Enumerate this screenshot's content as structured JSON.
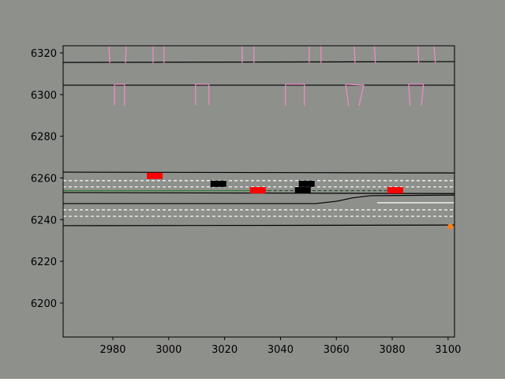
{
  "chart_data": {
    "type": "scene",
    "xlim": [
      2962.2,
      3102.3
    ],
    "ylim": [
      6183.7,
      6323.4
    ],
    "xticks": [
      2980,
      3000,
      3020,
      3040,
      3060,
      3080,
      3100
    ],
    "yticks": [
      6200,
      6220,
      6240,
      6260,
      6280,
      6300,
      6320
    ],
    "background": "#8e908c",
    "lines": [
      {
        "color": "#000000",
        "dash": false,
        "x": [
          2962.2,
          3102.3
        ],
        "y": [
          6315.4,
          6315.8
        ]
      },
      {
        "color": "#000000",
        "dash": false,
        "x": [
          2962.2,
          3102.3
        ],
        "y": [
          6304.5,
          6304.5
        ]
      },
      {
        "color": "#000000",
        "dash": false,
        "x": [
          2962.2,
          3102.3
        ],
        "y": [
          6262.8,
          6262.4
        ]
      },
      {
        "color": "#ffffff",
        "dash": true,
        "x": [
          2962.2,
          3102.3
        ],
        "y": [
          6258.7,
          6258.7
        ]
      },
      {
        "color": "#ffffff",
        "dash": true,
        "x": [
          2962.2,
          3102.3
        ],
        "y": [
          6255.7,
          6255.7
        ]
      },
      {
        "color": "#2e7d32",
        "dash": false,
        "x": [
          2962.2,
          3035.6
        ],
        "y": [
          6253.9,
          6253.9
        ]
      },
      {
        "color": "#1f4f1f",
        "dash": true,
        "x": [
          3035.6,
          3080.0
        ],
        "y": [
          6253.9,
          6253.9
        ]
      },
      {
        "color": "#000000",
        "dash": false,
        "x": [
          2962.2,
          3102.3
        ],
        "y": [
          6253.0,
          6252.5
        ]
      },
      {
        "color": "#000000",
        "dash": false,
        "x": [
          2962.2,
          3052.6,
          3060.0,
          3066.0,
          3072.3,
          3102.3
        ],
        "y": [
          6247.7,
          6247.7,
          6248.8,
          6250.5,
          6251.5,
          6251.8
        ]
      },
      {
        "color": "#ffffff",
        "dash": false,
        "x": [
          3074.6,
          3102.3
        ],
        "y": [
          6248.1,
          6248.1
        ]
      },
      {
        "color": "#ffffff",
        "dash": true,
        "x": [
          2962.2,
          3102.3
        ],
        "y": [
          6244.7,
          6244.7
        ]
      },
      {
        "color": "#ffffff",
        "dash": true,
        "x": [
          2962.2,
          3102.3
        ],
        "y": [
          6241.6,
          6241.6
        ]
      },
      {
        "color": "#000000",
        "dash": false,
        "x": [
          2962.2,
          3102.3
        ],
        "y": [
          6237.1,
          6237.4
        ]
      },
      {
        "color": "#f08cc8",
        "dash": false,
        "x": [
          2978.6,
          2978.9
        ],
        "y": [
          6323.4,
          6315.1
        ]
      },
      {
        "color": "#f08cc8",
        "dash": false,
        "x": [
          2984.8,
          2984.5
        ],
        "y": [
          6323.4,
          6315.1
        ]
      },
      {
        "color": "#f08cc8",
        "dash": false,
        "x": [
          2994.4,
          2994.4
        ],
        "y": [
          6323.4,
          6315.1
        ]
      },
      {
        "color": "#f08cc8",
        "dash": false,
        "x": [
          2998.3,
          2998.3
        ],
        "y": [
          6323.4,
          6315.1
        ]
      },
      {
        "color": "#f08cc8",
        "dash": false,
        "x": [
          3026.3,
          3026.3
        ],
        "y": [
          6323.4,
          6315.1
        ]
      },
      {
        "color": "#f08cc8",
        "dash": false,
        "x": [
          3030.5,
          3030.5
        ],
        "y": [
          6323.4,
          6315.1
        ]
      },
      {
        "color": "#f08cc8",
        "dash": false,
        "x": [
          3050.3,
          3050.3
        ],
        "y": [
          6323.4,
          6315.1
        ]
      },
      {
        "color": "#f08cc8",
        "dash": false,
        "x": [
          3054.5,
          3054.5
        ],
        "y": [
          6323.4,
          6315.1
        ]
      },
      {
        "color": "#f08cc8",
        "dash": false,
        "x": [
          3066.4,
          3066.7
        ],
        "y": [
          6323.4,
          6315.1
        ]
      },
      {
        "color": "#f08cc8",
        "dash": false,
        "x": [
          3073.6,
          3074.0
        ],
        "y": [
          6323.4,
          6315.1
        ]
      },
      {
        "color": "#f08cc8",
        "dash": false,
        "x": [
          3089.2,
          3089.5
        ],
        "y": [
          6323.4,
          6315.1
        ]
      },
      {
        "color": "#f08cc8",
        "dash": false,
        "x": [
          3094.9,
          3095.5
        ],
        "y": [
          6323.4,
          6315.1
        ]
      },
      {
        "color": "#f08cc8",
        "dash": false,
        "x": [
          2980.6,
          2980.6,
          2984.2,
          2984.2
        ],
        "y": [
          6294.9,
          6304.9,
          6304.9,
          6294.6
        ]
      },
      {
        "color": "#f08cc8",
        "dash": false,
        "x": [
          3009.6,
          3009.6,
          3014.4,
          3014.4
        ],
        "y": [
          6294.9,
          6304.9,
          6304.9,
          6294.9
        ]
      },
      {
        "color": "#f08cc8",
        "dash": false,
        "x": [
          3041.8,
          3041.8,
          3048.6,
          3048.6
        ],
        "y": [
          6294.6,
          6304.9,
          6304.9,
          6294.6
        ]
      },
      {
        "color": "#f08cc8",
        "dash": false,
        "x": [
          3064.4,
          3063.3,
          3069.8,
          3068.1
        ],
        "y": [
          6294.6,
          6304.9,
          6304.5,
          6294.6
        ]
      },
      {
        "color": "#f08cc8",
        "dash": false,
        "x": [
          3086.4,
          3085.9,
          3091.2,
          3090.4
        ],
        "y": [
          6294.6,
          6304.9,
          6304.9,
          6294.6
        ]
      }
    ],
    "vehicles": [
      {
        "color": "#ff0000",
        "x": 2995.0,
        "y": 6261.0
      },
      {
        "color": "#000000",
        "x": 3017.8,
        "y": 6257.2
      },
      {
        "color": "#ff0000",
        "x": 3031.9,
        "y": 6254.1
      },
      {
        "color": "#000000",
        "x": 3048.0,
        "y": 6254.1
      },
      {
        "color": "#000000",
        "x": 3049.4,
        "y": 6257.2
      },
      {
        "color": "#ff0000",
        "x": 3081.1,
        "y": 6254.1
      }
    ],
    "markers": [
      {
        "color": "#ff7f0e",
        "x": 3100.8,
        "y": 6236.7
      }
    ]
  }
}
